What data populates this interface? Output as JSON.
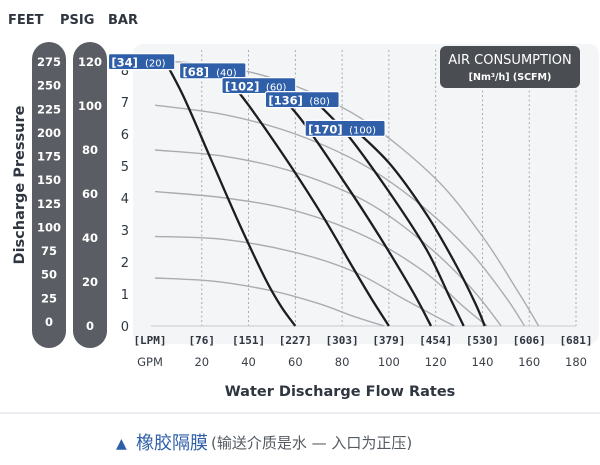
{
  "chart_data": {
    "type": "line",
    "header_labels": [
      "FEET",
      "PSIG",
      "BAR"
    ],
    "ylabel": "Discharge Pressure",
    "xlabel": "Water Discharge Flow Rates",
    "x_unit_lpm": "[LPM]",
    "x_unit_gpm": "GPM",
    "x_ticks_lpm": [
      "[76]",
      "[151]",
      "[227]",
      "[303]",
      "[379]",
      "[454]",
      "[530]",
      "[606]",
      "[681]"
    ],
    "x_ticks_gpm": [
      20,
      40,
      60,
      80,
      100,
      120,
      140,
      160,
      180
    ],
    "xlim": [
      0,
      180
    ],
    "y_ticks_bar": [
      0,
      1,
      2,
      3,
      4,
      5,
      6,
      7,
      8
    ],
    "ylim": [
      0,
      8.6
    ],
    "y_ticks_feet": [
      "275",
      "250",
      "225",
      "200",
      "175",
      "150",
      "125",
      "100",
      "75",
      "50",
      "25",
      "0"
    ],
    "y_ticks_psig": [
      120,
      100,
      80,
      60,
      40,
      20,
      0
    ],
    "legend_title": "AIR CONSUMPTION",
    "legend_subtitle": "[Nm³/h] (SCFM)",
    "series": [
      {
        "name": "[34] (20)",
        "label_main": "[34]",
        "label_sub": "(20)",
        "x": [
          3,
          12,
          24,
          36,
          47,
          54,
          60
        ],
        "y": [
          8.45,
          7.2,
          5.2,
          3.2,
          1.5,
          0.6,
          0
        ]
      },
      {
        "name": "[68] (40)",
        "label_main": "[68]",
        "label_sub": "(40)",
        "x": [
          27,
          40,
          58,
          72,
          84,
          93,
          100
        ],
        "y": [
          8.1,
          6.9,
          5.0,
          3.4,
          1.9,
          0.8,
          0
        ]
      },
      {
        "name": "[102] (60)",
        "label_main": "[102]",
        "label_sub": "(60)",
        "x": [
          47,
          62,
          80,
          96,
          110,
          118
        ],
        "y": [
          7.7,
          6.5,
          4.6,
          2.8,
          1.1,
          0
        ]
      },
      {
        "name": "[136] (80)",
        "label_main": "[136]",
        "label_sub": "(80)",
        "x": [
          66,
          82,
          100,
          116,
          126,
          132
        ],
        "y": [
          7.2,
          6.0,
          4.2,
          2.4,
          0.9,
          0
        ]
      },
      {
        "name": "[170] (100)",
        "label_main": "[170]",
        "label_sub": "(100)",
        "x": [
          83,
          100,
          116,
          128,
          137,
          141
        ],
        "y": [
          6.3,
          5.1,
          3.5,
          2.0,
          0.7,
          0
        ]
      }
    ],
    "pressure_curves": [
      {
        "x": [
          0,
          30,
          60,
          90,
          120,
          140,
          155,
          164
        ],
        "y": [
          8.3,
          8.1,
          7.5,
          6.4,
          4.6,
          2.8,
          1.1,
          0
        ]
      },
      {
        "x": [
          0,
          30,
          60,
          90,
          115,
          135,
          150,
          158
        ],
        "y": [
          6.9,
          6.6,
          6.0,
          5.0,
          3.7,
          2.3,
          0.9,
          0
        ]
      },
      {
        "x": [
          0,
          30,
          60,
          90,
          115,
          135,
          148
        ],
        "y": [
          5.5,
          5.3,
          4.8,
          3.9,
          2.6,
          1.2,
          0
        ]
      },
      {
        "x": [
          0,
          30,
          60,
          90,
          115,
          132,
          142
        ],
        "y": [
          4.2,
          4.0,
          3.6,
          2.8,
          1.7,
          0.6,
          0
        ]
      },
      {
        "x": [
          0,
          30,
          60,
          85,
          105,
          120,
          128
        ],
        "y": [
          2.8,
          2.7,
          2.3,
          1.7,
          0.9,
          0.3,
          0
        ]
      },
      {
        "x": [
          0,
          25,
          50,
          70,
          85,
          98
        ],
        "y": [
          1.5,
          1.4,
          1.1,
          0.7,
          0.3,
          0
        ]
      }
    ]
  },
  "footer": {
    "marker": "▲",
    "title": "橡胶隔膜",
    "subtitle": "(输送介质是水 — 入口为正压)"
  }
}
